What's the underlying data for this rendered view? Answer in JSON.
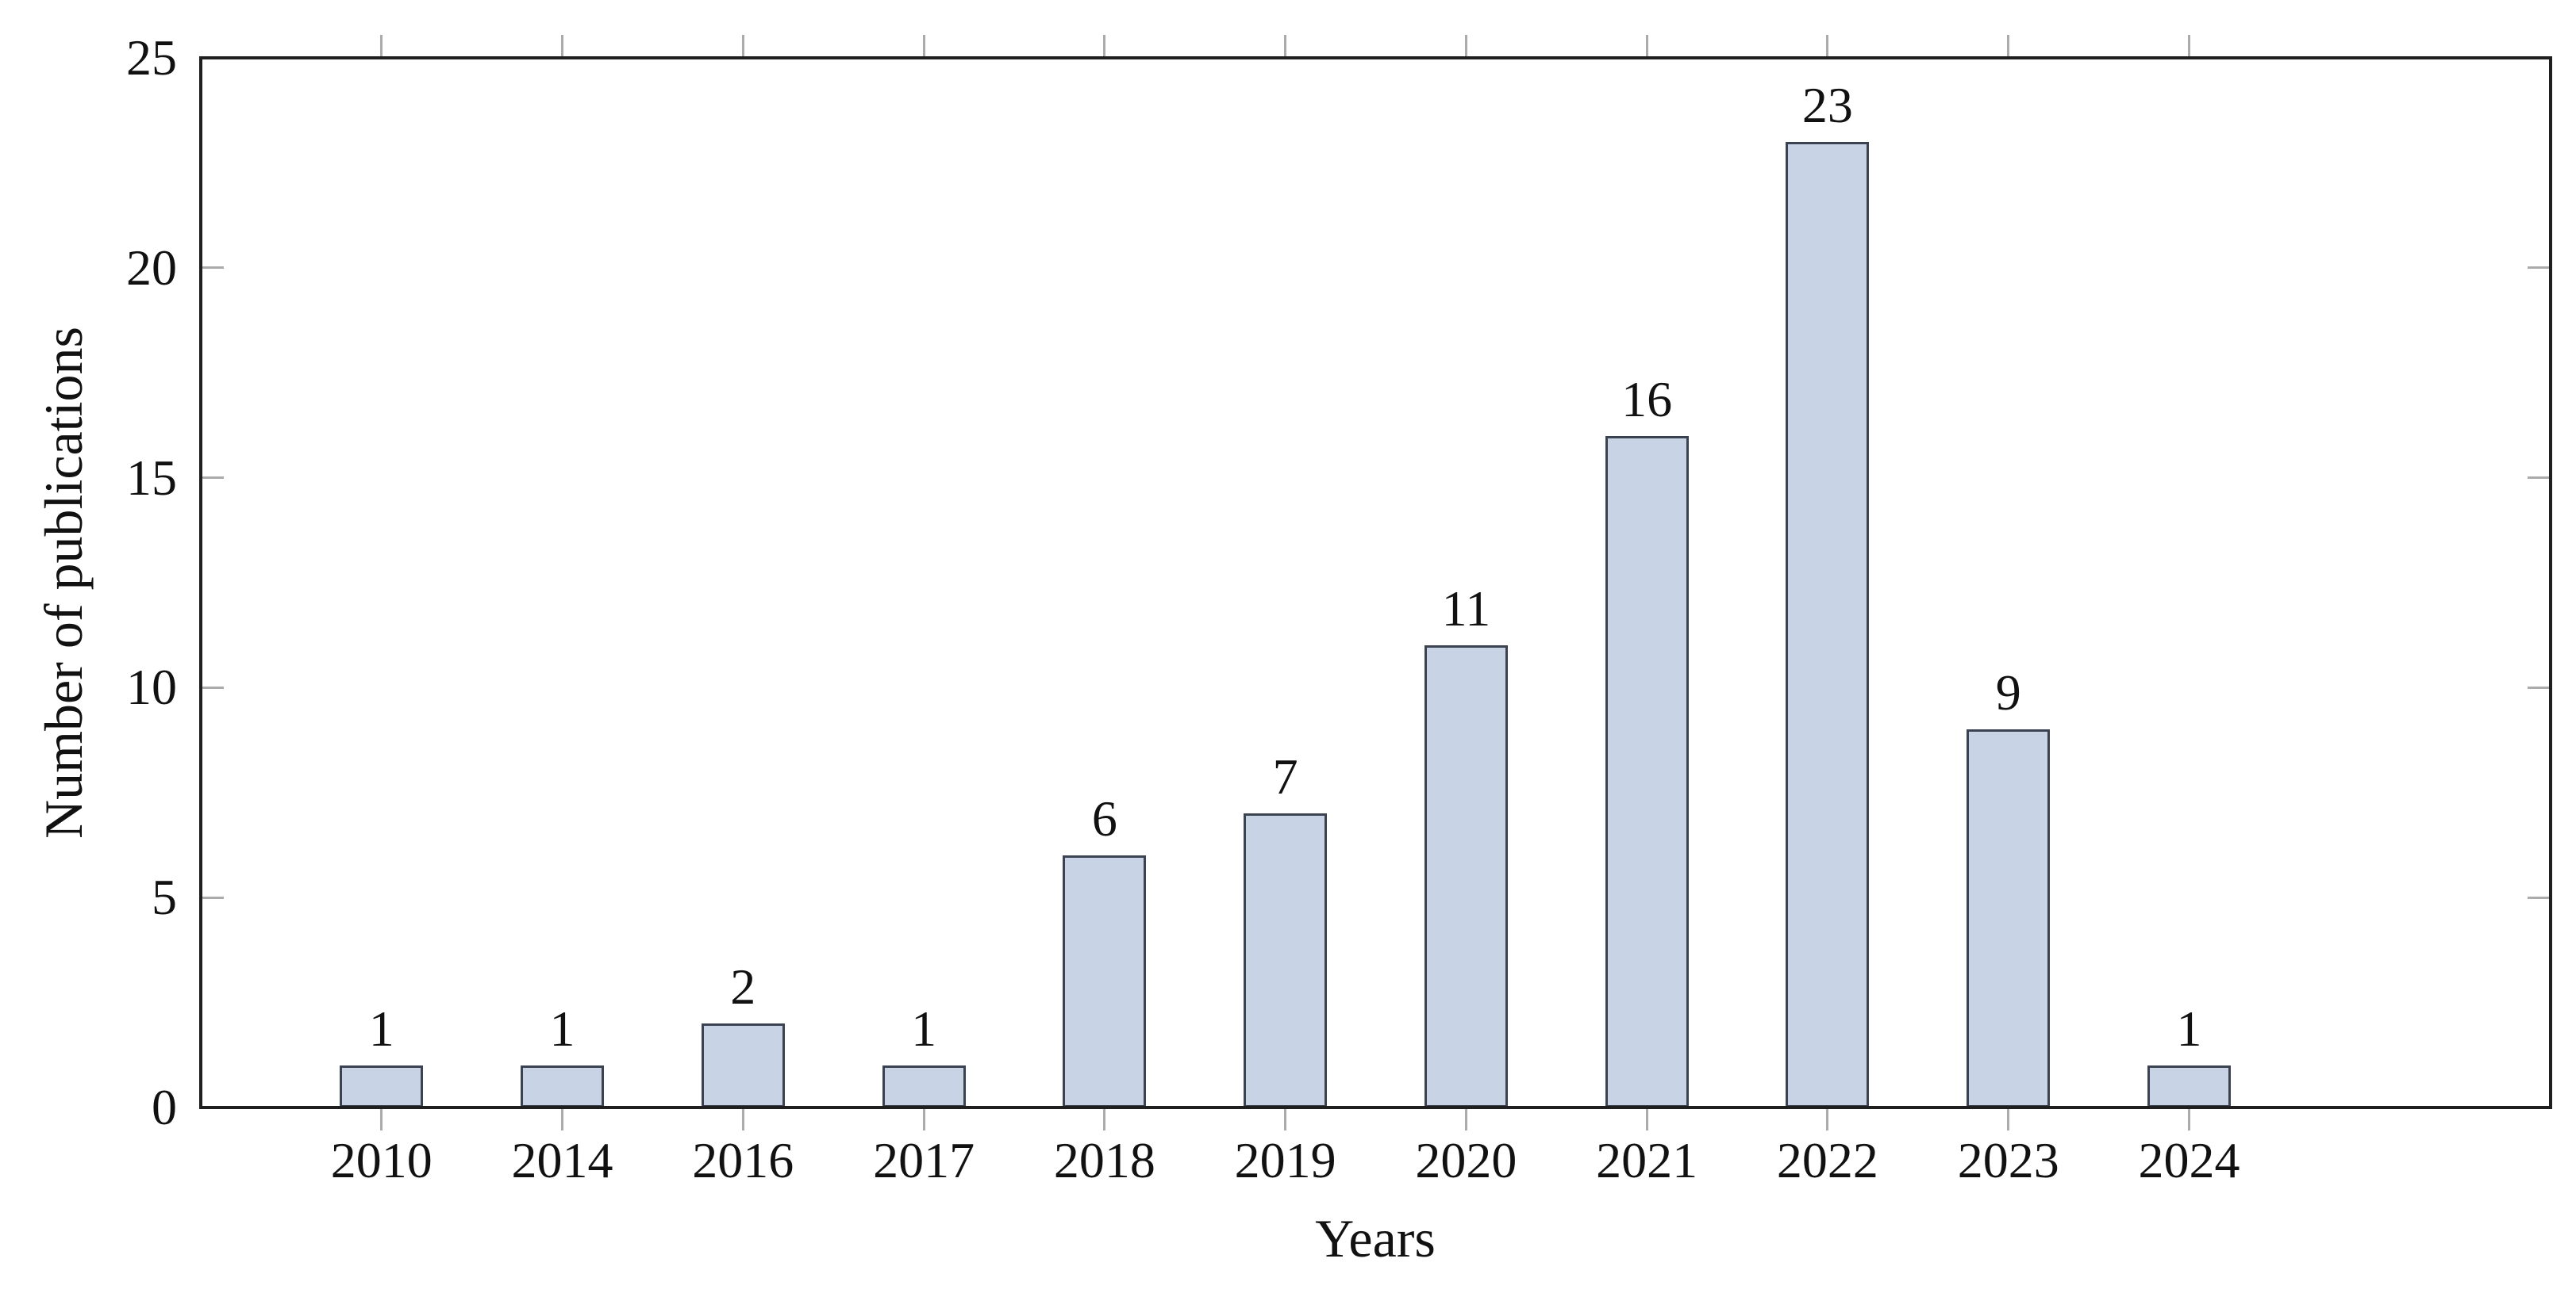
{
  "chart_data": {
    "type": "bar",
    "categories": [
      "2010",
      "2014",
      "2016",
      "2017",
      "2018",
      "2019",
      "2020",
      "2021",
      "2022",
      "2023",
      "2024"
    ],
    "values": [
      1,
      1,
      2,
      1,
      6,
      7,
      11,
      16,
      23,
      9,
      1
    ],
    "bar_value_labels": [
      "1",
      "1",
      "2",
      "1",
      "6",
      "7",
      "11",
      "16",
      "23",
      "9",
      "1"
    ],
    "title": "",
    "xlabel": "Years",
    "ylabel": "Number of publications",
    "ylim": [
      0,
      25
    ],
    "yticks": [
      0,
      5,
      10,
      15,
      20,
      25
    ],
    "inner_ytick_values": [
      5,
      10,
      15,
      20
    ],
    "grid": false,
    "legend": null,
    "colors": {
      "bar_fill": "#c8d4e5",
      "bar_border": "#3a434f",
      "axis_frame": "#1f1f1f",
      "tick_mark": "#ababab",
      "text": "#111111",
      "background": "#ffffff"
    }
  }
}
